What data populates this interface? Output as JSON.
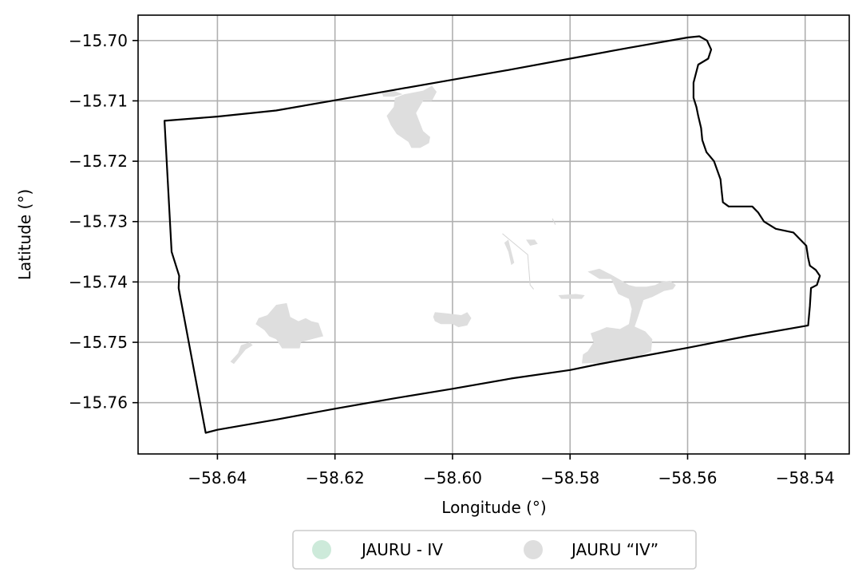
{
  "chart_data": {
    "type": "map",
    "xlabel": "Longitude (°)",
    "ylabel": "Latitude (°)",
    "xlim": [
      -58.6535,
      -58.5325
    ],
    "ylim": [
      -15.7685,
      -15.6958
    ],
    "xticks": [
      {
        "value": -58.64,
        "label": "−58.64"
      },
      {
        "value": -58.62,
        "label": "−58.62"
      },
      {
        "value": -58.6,
        "label": "−58.60"
      },
      {
        "value": -58.58,
        "label": "−58.58"
      },
      {
        "value": -58.56,
        "label": "−58.56"
      },
      {
        "value": -58.54,
        "label": "−58.54"
      }
    ],
    "yticks": [
      {
        "value": -15.7,
        "label": "−15.70"
      },
      {
        "value": -15.71,
        "label": "−15.71"
      },
      {
        "value": -15.72,
        "label": "−15.72"
      },
      {
        "value": -15.73,
        "label": "−15.73"
      },
      {
        "value": -15.74,
        "label": "−15.74"
      },
      {
        "value": -15.75,
        "label": "−15.75"
      },
      {
        "value": -15.76,
        "label": "−15.76"
      }
    ],
    "grid": true,
    "legend_position": "bottom-center",
    "legend": [
      {
        "label": "JAURU - IV",
        "color": "#cdeada"
      },
      {
        "label": "JAURU “IV”",
        "color": "#dedede"
      }
    ],
    "boundary": [
      [
        -58.649,
        -15.7133
      ],
      [
        -58.6478,
        -15.735
      ],
      [
        -58.6465,
        -15.739
      ],
      [
        -58.6466,
        -15.741
      ],
      [
        -58.642,
        -15.765
      ],
      [
        -58.64,
        -15.7645
      ],
      [
        -58.63,
        -15.7628
      ],
      [
        -58.62,
        -15.761
      ],
      [
        -58.61,
        -15.7593
      ],
      [
        -58.6,
        -15.7577
      ],
      [
        -58.59,
        -15.756
      ],
      [
        -58.58,
        -15.7546
      ],
      [
        -58.5755,
        -15.7537
      ],
      [
        -58.57,
        -15.7527
      ],
      [
        -58.56,
        -15.7509
      ],
      [
        -58.55,
        -15.749
      ],
      [
        -58.5395,
        -15.7472
      ],
      [
        -58.5392,
        -15.744
      ],
      [
        -58.539,
        -15.741
      ],
      [
        -58.538,
        -15.7405
      ],
      [
        -58.5375,
        -15.739
      ],
      [
        -58.5382,
        -15.738
      ],
      [
        -58.5392,
        -15.7373
      ],
      [
        -58.5395,
        -15.736
      ],
      [
        -58.5398,
        -15.734
      ],
      [
        -58.542,
        -15.7318
      ],
      [
        -58.545,
        -15.7312
      ],
      [
        -58.547,
        -15.73
      ],
      [
        -58.548,
        -15.7285
      ],
      [
        -58.549,
        -15.7275
      ],
      [
        -58.551,
        -15.7275
      ],
      [
        -58.553,
        -15.7275
      ],
      [
        -58.554,
        -15.7268
      ],
      [
        -58.5542,
        -15.725
      ],
      [
        -58.5544,
        -15.723
      ],
      [
        -58.5555,
        -15.72
      ],
      [
        -58.5568,
        -15.7185
      ],
      [
        -58.5575,
        -15.7165
      ],
      [
        -58.5577,
        -15.7145
      ],
      [
        -58.5582,
        -15.7125
      ],
      [
        -58.5585,
        -15.711
      ],
      [
        -58.559,
        -15.7095
      ],
      [
        -58.559,
        -15.707
      ],
      [
        -58.5582,
        -15.704
      ],
      [
        -58.5565,
        -15.703
      ],
      [
        -58.556,
        -15.7015
      ],
      [
        -58.5567,
        -15.7
      ],
      [
        -58.558,
        -15.6993
      ],
      [
        -58.56,
        -15.6995
      ],
      [
        -58.57,
        -15.7012
      ],
      [
        -58.58,
        -15.703
      ],
      [
        -58.59,
        -15.7048
      ],
      [
        -58.6,
        -15.7065
      ],
      [
        -58.61,
        -15.7082
      ],
      [
        -58.62,
        -15.7099
      ],
      [
        -58.63,
        -15.7116
      ],
      [
        -58.64,
        -15.7126
      ],
      [
        -58.649,
        -15.7133
      ]
    ],
    "parcels": [
      {
        "category": "JAURU “IV”",
        "coords": [
          [
            -58.6082,
            -15.7089
          ],
          [
            -58.605,
            -15.7083
          ],
          [
            -58.6035,
            -15.7075
          ],
          [
            -58.6027,
            -15.7085
          ],
          [
            -58.6035,
            -15.71
          ],
          [
            -58.605,
            -15.71
          ],
          [
            -58.6062,
            -15.712
          ],
          [
            -58.605,
            -15.715
          ],
          [
            -58.6038,
            -15.716
          ],
          [
            -58.604,
            -15.717
          ],
          [
            -58.6055,
            -15.7178
          ],
          [
            -58.607,
            -15.7178
          ],
          [
            -58.6075,
            -15.7168
          ],
          [
            -58.6095,
            -15.7155
          ],
          [
            -58.6105,
            -15.714
          ],
          [
            -58.6112,
            -15.7125
          ],
          [
            -58.61,
            -15.711
          ],
          [
            -58.6098,
            -15.7095
          ]
        ]
      },
      {
        "category": "JAURU “IV”",
        "coords": [
          [
            -58.612,
            -15.7087
          ],
          [
            -58.61,
            -15.7083
          ],
          [
            -58.6085,
            -15.7089
          ],
          [
            -58.61,
            -15.7093
          ],
          [
            -58.6118,
            -15.7093
          ]
        ]
      },
      {
        "category": "JAURU “IV”",
        "coords": [
          [
            -58.63,
            -15.7438
          ],
          [
            -58.6282,
            -15.7435
          ],
          [
            -58.6276,
            -15.7458
          ],
          [
            -58.6262,
            -15.7465
          ],
          [
            -58.625,
            -15.746
          ],
          [
            -58.624,
            -15.7465
          ],
          [
            -58.6228,
            -15.7468
          ],
          [
            -58.622,
            -15.749
          ],
          [
            -58.624,
            -15.7495
          ],
          [
            -58.6258,
            -15.75
          ],
          [
            -58.626,
            -15.751
          ],
          [
            -58.629,
            -15.751
          ],
          [
            -58.63,
            -15.7495
          ],
          [
            -58.6312,
            -15.749
          ],
          [
            -58.632,
            -15.748
          ],
          [
            -58.6335,
            -15.747
          ],
          [
            -58.633,
            -15.746
          ],
          [
            -58.6315,
            -15.7455
          ]
        ]
      },
      {
        "category": "JAURU “IV”",
        "coords": [
          [
            -58.636,
            -15.7505
          ],
          [
            -58.6345,
            -15.75
          ],
          [
            -58.634,
            -15.7505
          ],
          [
            -58.6352,
            -15.7512
          ],
          [
            -58.6372,
            -15.7536
          ],
          [
            -58.6378,
            -15.7532
          ],
          [
            -58.6365,
            -15.7518
          ]
        ]
      },
      {
        "category": "JAURU “IV”",
        "coords": [
          [
            -58.603,
            -15.745
          ],
          [
            -58.601,
            -15.7452
          ],
          [
            -58.5985,
            -15.7455
          ],
          [
            -58.5975,
            -15.745
          ],
          [
            -58.5968,
            -15.746
          ],
          [
            -58.5975,
            -15.7472
          ],
          [
            -58.599,
            -15.7475
          ],
          [
            -58.6,
            -15.747
          ],
          [
            -58.602,
            -15.747
          ],
          [
            -58.603,
            -15.7465
          ],
          [
            -58.6033,
            -15.7458
          ]
        ]
      },
      {
        "category": "JAURU “IV”",
        "coords": [
          [
            -58.582,
            -15.7422
          ],
          [
            -58.579,
            -15.742
          ],
          [
            -58.5775,
            -15.7422
          ],
          [
            -58.578,
            -15.7428
          ],
          [
            -58.5815,
            -15.7428
          ]
        ]
      },
      {
        "category": "JAURU “IV”",
        "coords": [
          [
            -58.5912,
            -15.7335
          ],
          [
            -58.5905,
            -15.733
          ],
          [
            -58.5895,
            -15.7368
          ],
          [
            -58.59,
            -15.7372
          ],
          [
            -58.5905,
            -15.735
          ]
        ]
      },
      {
        "category": "JAURU “IV”",
        "coords": [
          [
            -58.5875,
            -15.733
          ],
          [
            -58.586,
            -15.733
          ],
          [
            -58.5855,
            -15.7337
          ],
          [
            -58.5868,
            -15.734
          ]
        ]
      },
      {
        "category": "JAURU “IV”",
        "coords": [
          [
            -58.577,
            -15.7383
          ],
          [
            -58.575,
            -15.7395
          ],
          [
            -58.573,
            -15.7395
          ],
          [
            -58.5718,
            -15.742
          ],
          [
            -58.57,
            -15.7428
          ],
          [
            -58.5695,
            -15.7445
          ],
          [
            -58.57,
            -15.747
          ],
          [
            -58.5715,
            -15.7478
          ],
          [
            -58.5738,
            -15.7475
          ],
          [
            -58.575,
            -15.748
          ],
          [
            -58.5765,
            -15.7485
          ],
          [
            -58.576,
            -15.75
          ],
          [
            -58.577,
            -15.7515
          ],
          [
            -58.5778,
            -15.752
          ],
          [
            -58.578,
            -15.7535
          ],
          [
            -58.5742,
            -15.7534
          ],
          [
            -58.57,
            -15.7527
          ],
          [
            -58.568,
            -15.7522
          ],
          [
            -58.5662,
            -15.7515
          ],
          [
            -58.566,
            -15.7495
          ],
          [
            -58.5672,
            -15.7482
          ],
          [
            -58.569,
            -15.7474
          ],
          [
            -58.5685,
            -15.746
          ],
          [
            -58.568,
            -15.7445
          ],
          [
            -58.5675,
            -15.743
          ],
          [
            -58.566,
            -15.7425
          ],
          [
            -58.565,
            -15.742
          ],
          [
            -58.564,
            -15.7415
          ],
          [
            -58.5625,
            -15.7412
          ],
          [
            -58.562,
            -15.7405
          ],
          [
            -58.563,
            -15.7398
          ],
          [
            -58.5645,
            -15.74
          ],
          [
            -58.5655,
            -15.7405
          ],
          [
            -58.567,
            -15.7408
          ],
          [
            -58.5688,
            -15.7408
          ],
          [
            -58.57,
            -15.7405
          ],
          [
            -58.5712,
            -15.7398
          ],
          [
            -58.573,
            -15.7388
          ],
          [
            -58.575,
            -15.7378
          ]
        ]
      }
    ],
    "ditches": [
      [
        [
          -58.5915,
          -15.732
        ],
        [
          -58.5872,
          -15.7355
        ],
        [
          -58.5868,
          -15.7405
        ],
        [
          -58.5862,
          -15.7412
        ]
      ],
      [
        [
          -58.583,
          -15.7295
        ],
        [
          -58.5825,
          -15.7305
        ]
      ]
    ]
  }
}
